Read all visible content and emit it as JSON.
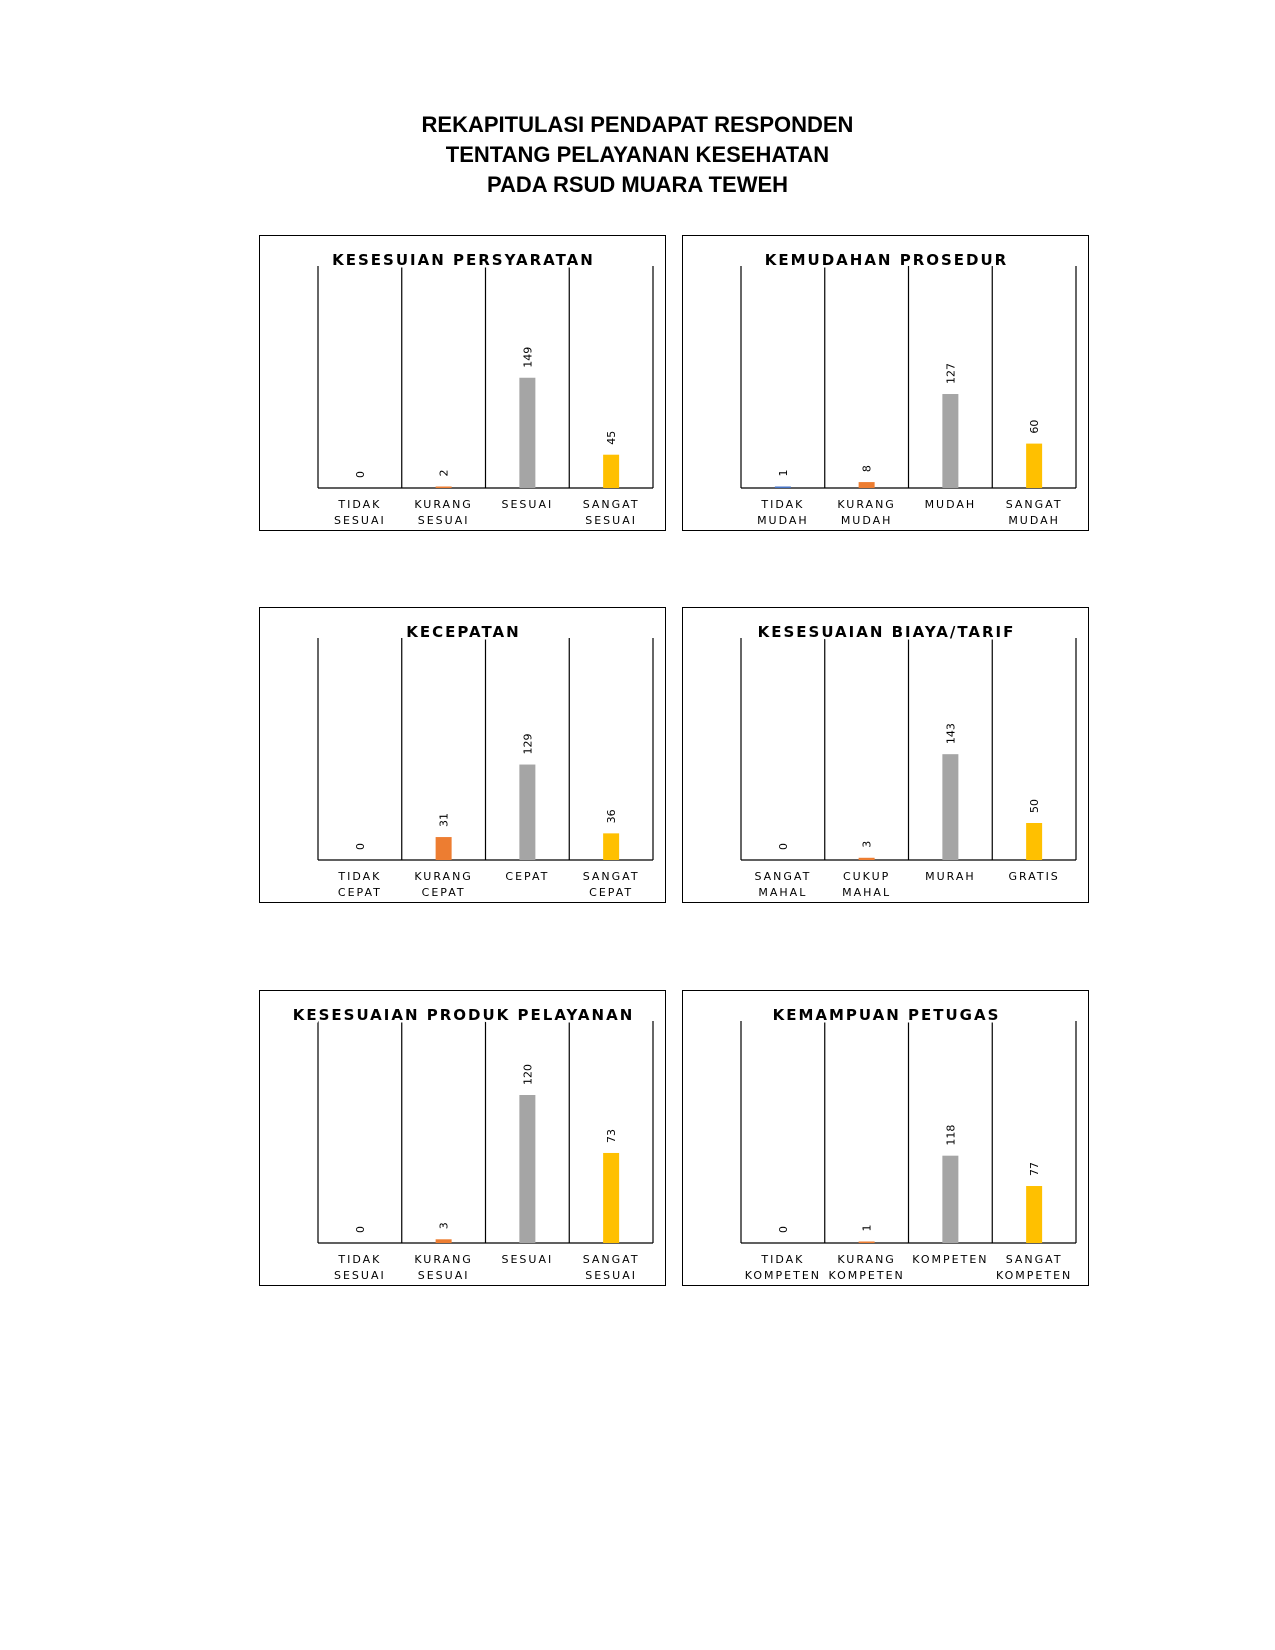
{
  "page": {
    "title_lines": [
      "REKAPITULASI PENDAPAT RESPONDEN",
      "TENTANG PELAYANAN KESEHATAN",
      "PADA RSUD MUARA TEWEH"
    ]
  },
  "colors": {
    "series": [
      "#4472C4",
      "#ED7D31",
      "#A5A5A5",
      "#FFC000"
    ],
    "axis": "#000000"
  },
  "chart_data": [
    {
      "type": "bar",
      "title": "KESESUIAN PERSYARATAN",
      "categories": [
        [
          "TIDAK",
          "SESUAI"
        ],
        [
          "KURANG",
          "SESUAI"
        ],
        [
          "SESUAI"
        ],
        [
          "SANGAT",
          "SESUAI"
        ]
      ],
      "values": [
        0,
        2,
        149,
        45
      ],
      "ylim": [
        0,
        300
      ],
      "grid": false,
      "legend": "none"
    },
    {
      "type": "bar",
      "title": "KEMUDAHAN PROSEDUR",
      "categories": [
        [
          "TIDAK",
          "MUDAH"
        ],
        [
          "KURANG",
          "MUDAH"
        ],
        [
          "MUDAH"
        ],
        [
          "SANGAT",
          "MUDAH"
        ]
      ],
      "values": [
        1,
        8,
        127,
        60
      ],
      "ylim": [
        0,
        300
      ],
      "grid": false,
      "legend": "none"
    },
    {
      "type": "bar",
      "title": "KECEPATAN",
      "categories": [
        [
          "TIDAK",
          "CEPAT"
        ],
        [
          "KURANG",
          "CEPAT"
        ],
        [
          "CEPAT"
        ],
        [
          "SANGAT",
          "CEPAT"
        ]
      ],
      "values": [
        0,
        31,
        129,
        36
      ],
      "ylim": [
        0,
        300
      ],
      "grid": false,
      "legend": "none"
    },
    {
      "type": "bar",
      "title": "KESESUAIAN BIAYA/TARIF",
      "categories": [
        [
          "SANGAT",
          "MAHAL"
        ],
        [
          "CUKUP",
          "MAHAL"
        ],
        [
          "MURAH"
        ],
        [
          "GRATIS"
        ]
      ],
      "values": [
        0,
        3,
        143,
        50
      ],
      "ylim": [
        0,
        300
      ],
      "grid": false,
      "legend": "none"
    },
    {
      "type": "bar",
      "title": "KESESUAIAN PRODUK PELAYANAN",
      "categories": [
        [
          "TIDAK",
          "SESUAI"
        ],
        [
          "KURANG",
          "SESUAI"
        ],
        [
          "SESUAI"
        ],
        [
          "SANGAT",
          "SESUAI"
        ]
      ],
      "values": [
        0,
        3,
        120,
        73
      ],
      "ylim": [
        0,
        180
      ],
      "grid": false,
      "legend": "none"
    },
    {
      "type": "bar",
      "title": "KEMAMPUAN PETUGAS",
      "categories": [
        [
          "TIDAK",
          "KOMPETEN"
        ],
        [
          "KURANG",
          "KOMPETEN"
        ],
        [
          "KOMPETEN"
        ],
        [
          "SANGAT",
          "KOMPETEN"
        ]
      ],
      "values": [
        0,
        1,
        118,
        77
      ],
      "ylim": [
        0,
        300
      ],
      "grid": false,
      "legend": "none"
    }
  ]
}
